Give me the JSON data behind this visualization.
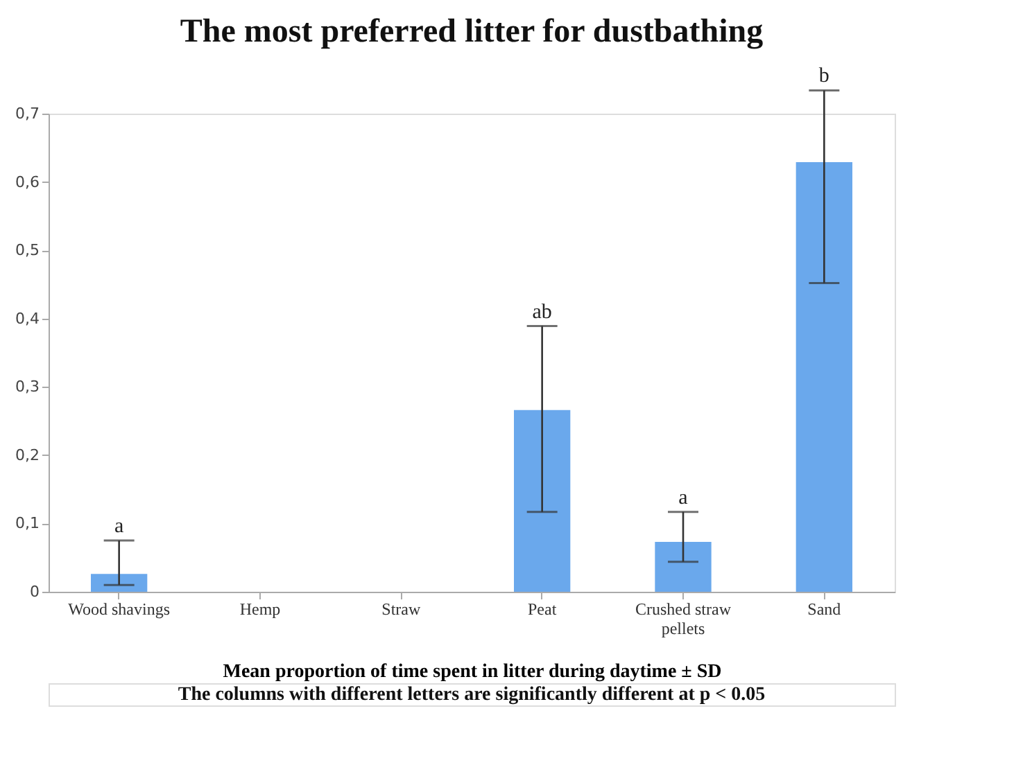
{
  "chart_data": {
    "type": "bar",
    "title": "The most preferred litter for dustbathing",
    "xlabel": "Mean proportion of time spent in litter during daytime ± SD",
    "categories": [
      "Wood shavings",
      "Hemp",
      "Straw",
      "Peat",
      "Crushed straw pellets",
      "Sand"
    ],
    "values": [
      0.026,
      0,
      0,
      0.266,
      0.073,
      0.629
    ],
    "errors": [
      [
        0.01,
        0.075
      ],
      null,
      null,
      [
        0.117,
        0.389
      ],
      [
        0.044,
        0.117
      ],
      [
        0.452,
        0.734
      ]
    ],
    "color": "#6aa8ec",
    "ylim": [
      0,
      0.7
    ],
    "yticks": [
      {
        "value": 0,
        "label": "0"
      },
      {
        "value": 0.1,
        "label": "0,1"
      },
      {
        "value": 0.2,
        "label": "0,2"
      },
      {
        "value": 0.3,
        "label": "0,3"
      },
      {
        "value": 0.4,
        "label": "0,4"
      },
      {
        "value": 0.5,
        "label": "0,5"
      },
      {
        "value": 0.6,
        "label": "0,6"
      },
      {
        "value": 0.7,
        "label": "0,7"
      }
    ],
    "grid": false,
    "annotations": [
      {
        "text": "a",
        "x": "Wood shavings",
        "y": 0.075
      },
      {
        "text": "ab",
        "x": "Peat",
        "y": 0.389
      },
      {
        "text": "a",
        "x": "Crushed straw pellets",
        "y": 0.117
      },
      {
        "text": "b",
        "x": "Sand",
        "y": 0.734
      },
      "The columns with different letters are significantly different at p < 0.05"
    ]
  }
}
